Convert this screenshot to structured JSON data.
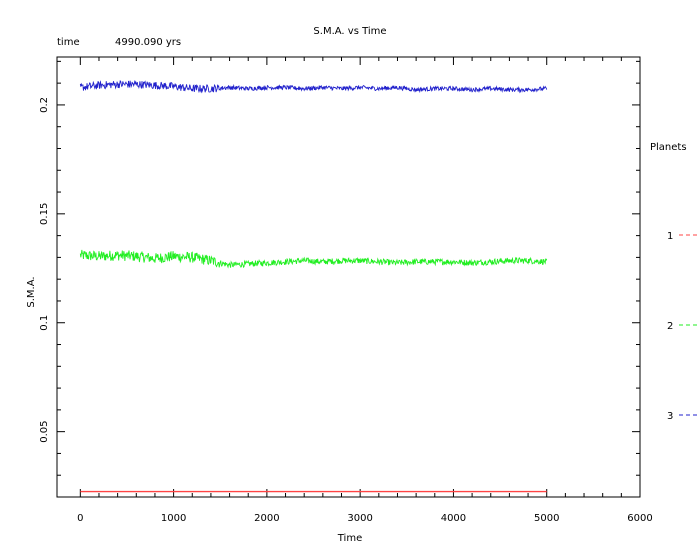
{
  "header": {
    "title": "S.M.A. vs Time",
    "time_label": "time",
    "time_value": "4990.090 yrs"
  },
  "chart_data": {
    "type": "line",
    "title": "S.M.A. vs Time",
    "xlabel": "Time",
    "ylabel": "S.M.A.",
    "xlim": [
      -250,
      6000
    ],
    "ylim": [
      0.02,
      0.222
    ],
    "xticks": [
      0,
      1000,
      2000,
      3000,
      4000,
      5000,
      6000
    ],
    "xtick_labels": [
      "0",
      "1000",
      "2000",
      "3000",
      "4000",
      "5000",
      "6000"
    ],
    "yticks": [
      0.05,
      0.1,
      0.15,
      0.2
    ],
    "ytick_labels": [
      "0.05",
      "0.1",
      "0.15",
      "0.2"
    ],
    "grid": false,
    "legend": {
      "title": "Planets",
      "placement": "right-outside",
      "entries": [
        {
          "label": "1",
          "color": "#ff4444"
        },
        {
          "label": "2",
          "color": "#22ee22"
        },
        {
          "label": "3",
          "color": "#2222cc"
        }
      ]
    },
    "series": [
      {
        "name": "1",
        "color": "#ff4444",
        "x": [
          0,
          1000,
          2000,
          3000,
          4000,
          5000
        ],
        "y": [
          0.0225,
          0.0225,
          0.0225,
          0.0225,
          0.0225,
          0.0225
        ]
      },
      {
        "name": "2",
        "color": "#22ee22",
        "x": [
          0,
          200,
          400,
          600,
          800,
          1000,
          1200,
          1400,
          1600,
          1800,
          2000,
          2200,
          2400,
          2600,
          2800,
          3000,
          3200,
          3400,
          3600,
          3800,
          4000,
          4200,
          4400,
          4600,
          4800,
          5000
        ],
        "y": [
          0.131,
          0.1305,
          0.131,
          0.1305,
          0.1295,
          0.1305,
          0.13,
          0.1285,
          0.1265,
          0.127,
          0.1275,
          0.128,
          0.1285,
          0.128,
          0.1285,
          0.1285,
          0.128,
          0.1275,
          0.128,
          0.128,
          0.128,
          0.1275,
          0.128,
          0.1285,
          0.1285,
          0.128
        ],
        "noise_amplitude": 0.0025
      },
      {
        "name": "3",
        "color": "#2222cc",
        "x": [
          0,
          200,
          400,
          600,
          800,
          1000,
          1200,
          1400,
          1600,
          1800,
          2000,
          2200,
          2400,
          2600,
          2800,
          3000,
          3200,
          3400,
          3600,
          3800,
          4000,
          4200,
          4400,
          4600,
          4800,
          5000
        ],
        "y": [
          0.208,
          0.209,
          0.2095,
          0.2095,
          0.209,
          0.2085,
          0.2075,
          0.2075,
          0.208,
          0.2075,
          0.208,
          0.208,
          0.2075,
          0.208,
          0.2075,
          0.208,
          0.2075,
          0.208,
          0.207,
          0.2075,
          0.2075,
          0.207,
          0.2075,
          0.207,
          0.207,
          0.2075
        ],
        "noise_amplitude": 0.0018
      }
    ]
  }
}
